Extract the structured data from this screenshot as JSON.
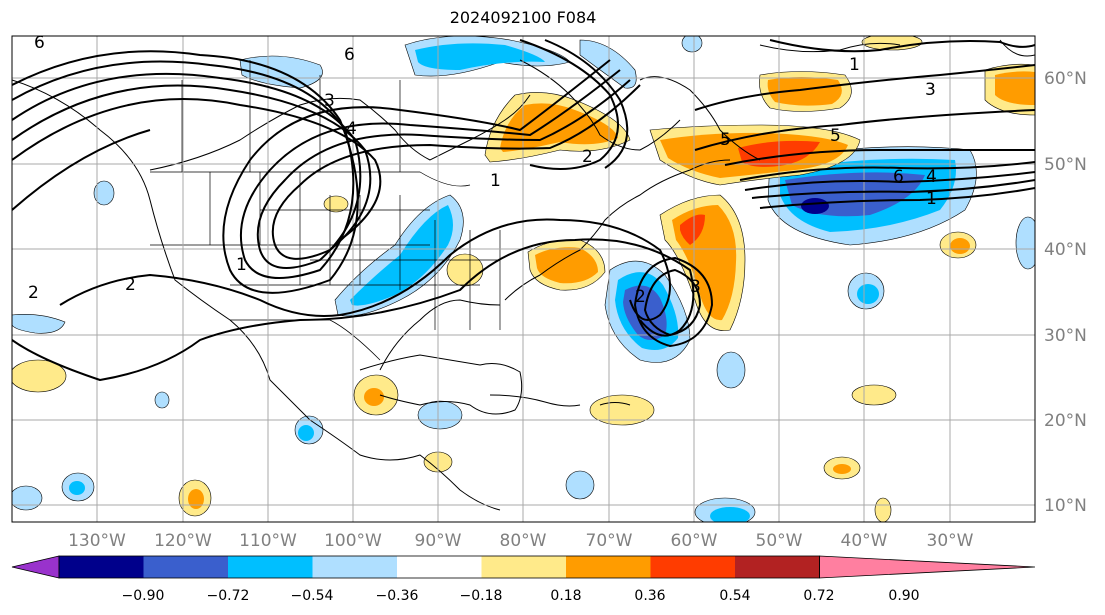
{
  "title": "2024092100 F084",
  "map": {
    "lon_ticks": [
      "130°W",
      "120°W",
      "110°W",
      "100°W",
      "90°W",
      "80°W",
      "70°W",
      "60°W",
      "50°W",
      "40°W",
      "30°W"
    ],
    "lat_ticks": [
      "60°N",
      "50°N",
      "40°N",
      "30°N",
      "20°N",
      "10°N"
    ],
    "contour_labels": [
      "6",
      "6",
      "5",
      "3",
      "2",
      "1",
      "1",
      "2",
      "2",
      "3",
      "4",
      "5",
      "3",
      "1",
      "6",
      "4",
      "1",
      "2"
    ]
  },
  "colorbar": {
    "ticks": [
      "−0.90",
      "−0.72",
      "−0.54",
      "−0.36",
      "−0.18",
      "0.18",
      "0.36",
      "0.54",
      "0.72",
      "0.90"
    ],
    "colors": [
      "#9932cc",
      "#00008b",
      "#3a5fcd",
      "#00bfff",
      "#afdfff",
      "#ffffff",
      "#ffea8a",
      "#ff9c00",
      "#ff3c00",
      "#b22222",
      "#ff7fa0"
    ]
  }
}
